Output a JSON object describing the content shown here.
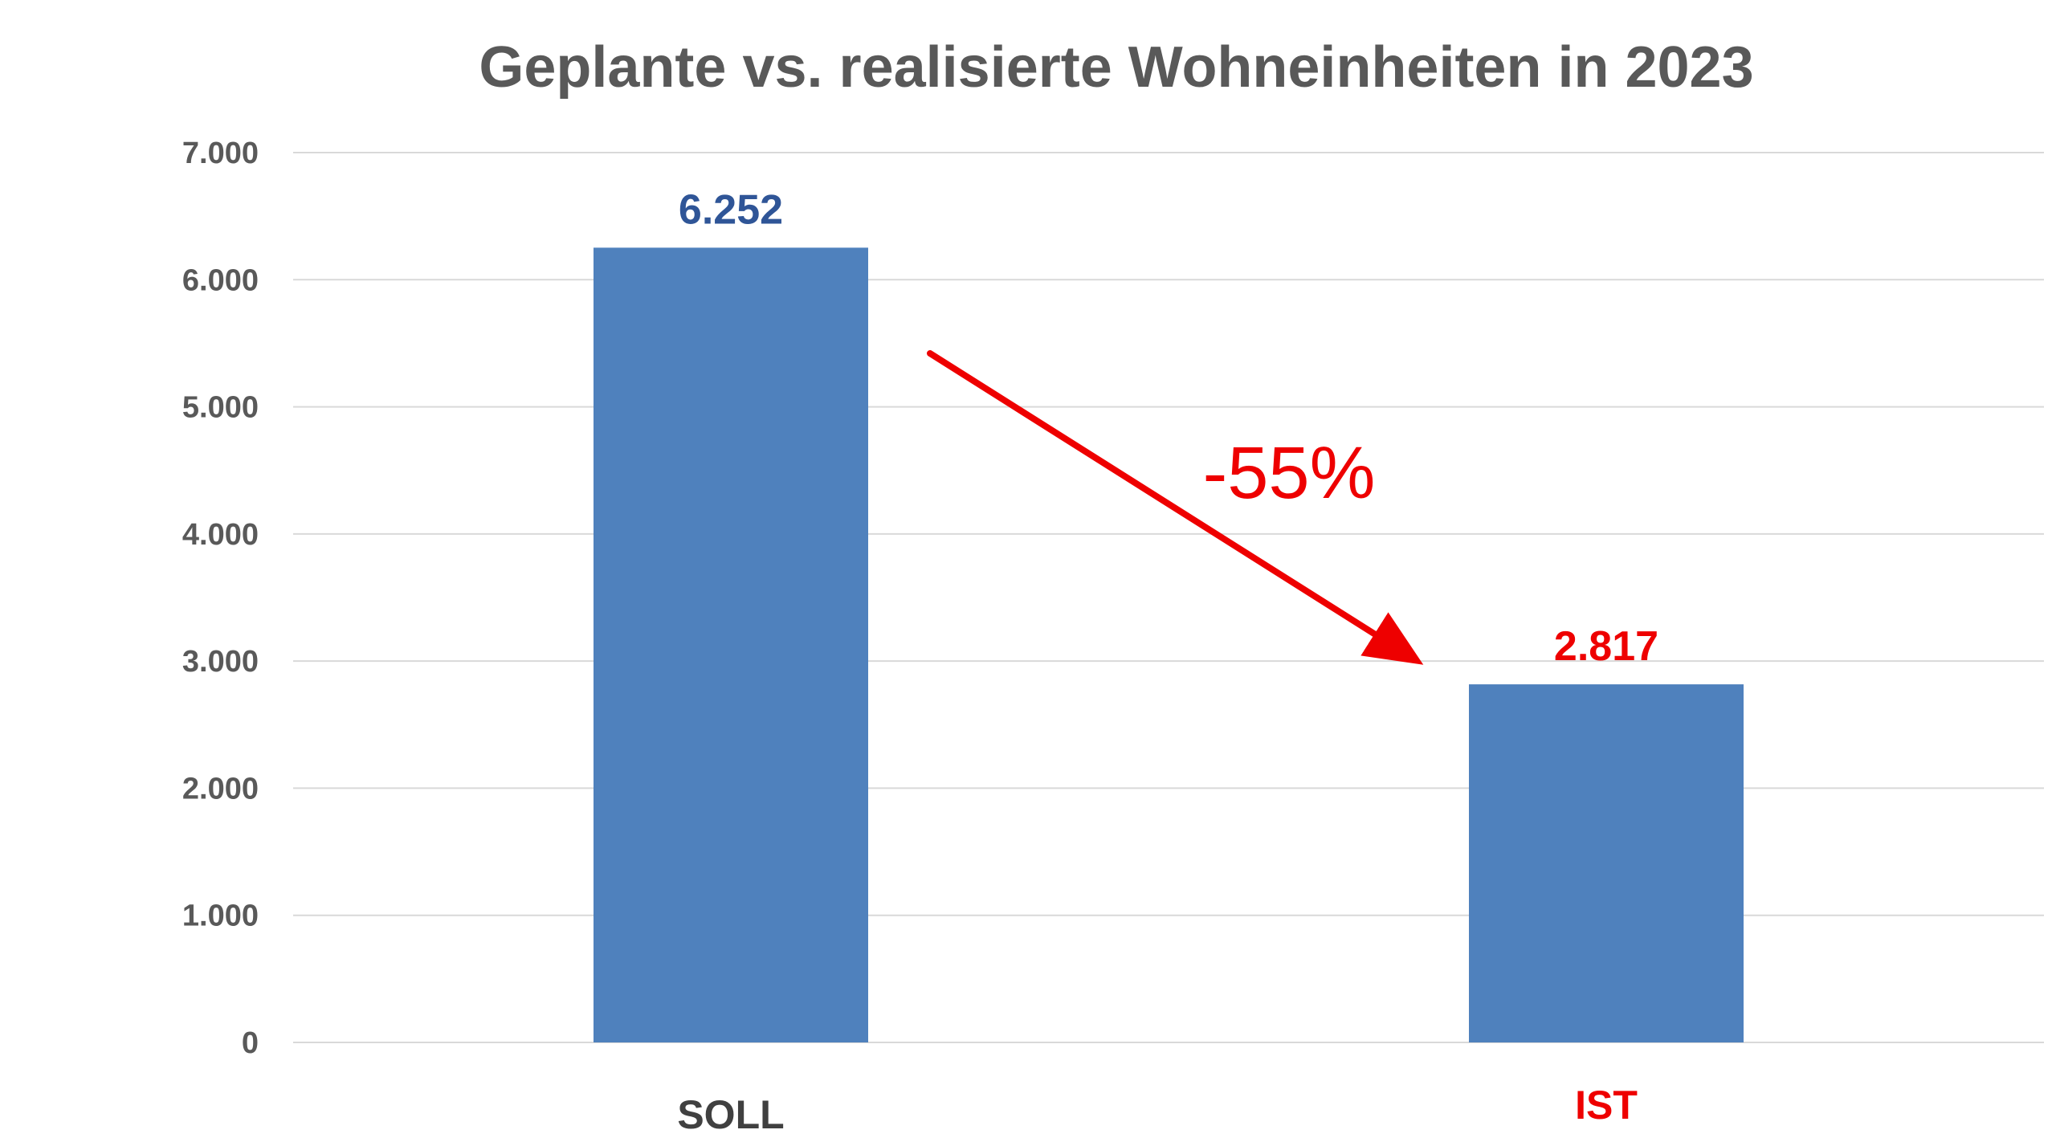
{
  "chart_data": {
    "type": "bar",
    "title": "Geplante vs. realisierte Wohneinheiten in 2023",
    "categories": [
      "SOLL",
      "IST"
    ],
    "values": [
      6252,
      2817
    ],
    "data_labels": [
      "6.252",
      "2.817"
    ],
    "ylim": [
      0,
      7000
    ],
    "yticks": [
      0,
      1000,
      2000,
      3000,
      4000,
      5000,
      6000,
      7000
    ],
    "ytick_labels": [
      "0",
      "1.000",
      "2.000",
      "3.000",
      "4.000",
      "5.000",
      "6.000",
      "7.000"
    ],
    "grid": true,
    "legend": "none",
    "bar_color": "#4f81bd",
    "label_colors": [
      "#2f5597",
      "#ee0000"
    ],
    "category_label_colors": [
      "#404040",
      "#ee0000"
    ],
    "annotation": {
      "text": "-55%",
      "color": "#ee0000",
      "arrow": true
    }
  }
}
